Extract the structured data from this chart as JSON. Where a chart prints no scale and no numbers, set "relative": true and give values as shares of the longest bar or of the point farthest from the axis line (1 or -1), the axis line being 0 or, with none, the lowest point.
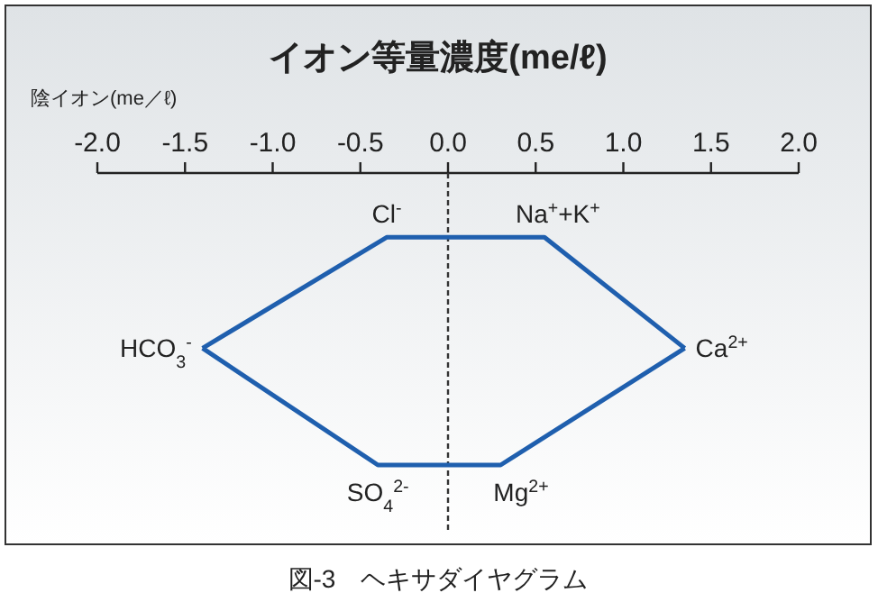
{
  "chart_data": {
    "type": "line",
    "title": "イオン等量濃度(me/ℓ)",
    "xlabel": "陰イオン(me／ℓ)",
    "relative": true,
    "xlim": [
      -2,
      2
    ],
    "xticks": [
      {
        "value": -2,
        "label": "-2.0"
      },
      {
        "value": -1.5,
        "label": "-1.5"
      },
      {
        "value": -1,
        "label": "-1.0"
      },
      {
        "value": -0.5,
        "label": "-0.5"
      },
      {
        "value": 0,
        "label": "0.0"
      },
      {
        "value": 0.5,
        "label": "0.5"
      },
      {
        "value": 1,
        "label": "1.0"
      },
      {
        "value": 1.5,
        "label": "1.5"
      },
      {
        "value": 2,
        "label": "2.0"
      }
    ],
    "series": [
      {
        "color": "#1f5fae",
        "x": [
          -1.4,
          -0.35,
          0.55,
          1.35
        ],
        "values": [
          -0.6,
          -0.22,
          -0.22,
          -0.6
        ]
      },
      {
        "color": "#1f5fae",
        "x": [
          -1.4,
          -0.4,
          0.3,
          1.35
        ],
        "values": [
          -0.6,
          -1,
          -1,
          -0.6
        ]
      }
    ],
    "ref_lines": [
      {
        "axis": "x",
        "value": 0,
        "line_style": "dashed",
        "color": "#333333"
      }
    ],
    "annotations": [
      {
        "text": "Cl$^{-}$",
        "x": -0.35,
        "y": -0.22
      },
      {
        "text": "Na$^{+}$+K$^{+}$",
        "x": 0.55,
        "y": -0.22
      },
      {
        "text": "HCO$_{3}$$^{-}$",
        "x": -1.4,
        "y": -0.6
      },
      {
        "text": "Ca$^{2+}$",
        "x": 1.35,
        "y": -0.6
      },
      {
        "text": "SO$_{4}$$^{2-}$",
        "x": -0.4,
        "y": -1
      },
      {
        "text": "Mg$^{2+}$",
        "x": 0.3,
        "y": -1
      },
      "図-3　ヘキサダイヤグラム"
    ]
  }
}
